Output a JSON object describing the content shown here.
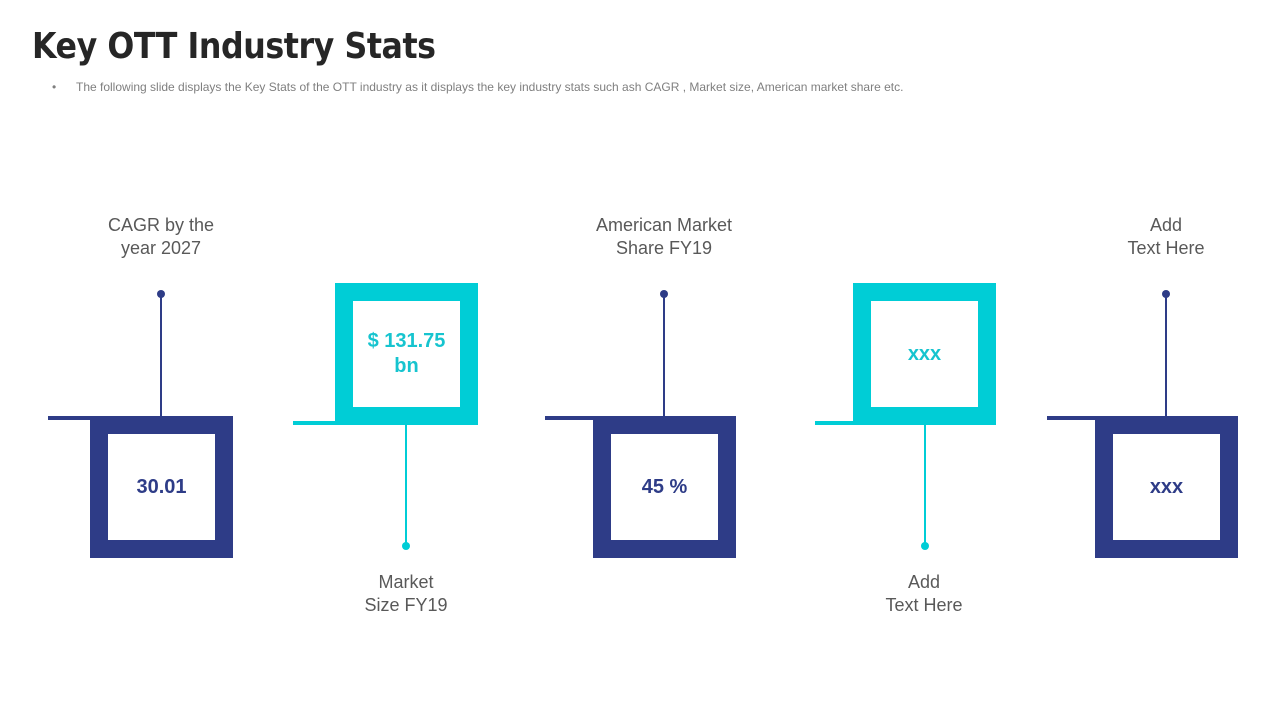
{
  "slide": {
    "title": "Key OTT Industry Stats",
    "bullet": "•",
    "subtitle": "The following  slide displays the Key Stats of the OTT  industry as it displays the  key industry stats such ash CAGR , Market size, American market share etc."
  },
  "stats": [
    {
      "label_line1": "CAGR by the",
      "label_line2": "year 2027",
      "value": "30.01",
      "color": "#2e3c87"
    },
    {
      "label_line1": "Market",
      "label_line2": "Size FY19",
      "value_line1": "$ 131.75",
      "value_line2": "bn",
      "color": "#00cdd6"
    },
    {
      "label_line1": "American Market",
      "label_line2": "Share FY19",
      "value": "45 %",
      "color": "#2e3c87"
    },
    {
      "label_line1": "Add",
      "label_line2": "Text Here",
      "value": "xxx",
      "color": "#00cdd6"
    },
    {
      "label_line1": "Add",
      "label_line2": "Text Here",
      "value": "xxx",
      "color": "#2e3c87"
    }
  ]
}
